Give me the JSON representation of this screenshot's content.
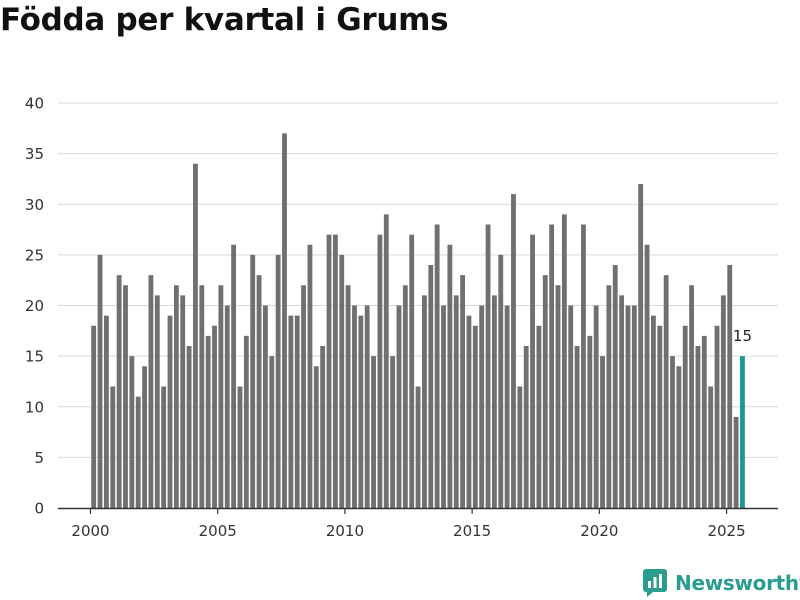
{
  "chart_data": {
    "type": "bar",
    "title": "Födda per kvartal i Grums",
    "xlabel": "",
    "ylabel": "",
    "ylim": [
      0,
      40
    ],
    "yticks": [
      0,
      5,
      10,
      15,
      20,
      25,
      30,
      35,
      40
    ],
    "xticks": [
      2000,
      2005,
      2010,
      2015,
      2020,
      2025
    ],
    "x_start_year": 2000,
    "x_start_quarter": 1,
    "categories": [
      "2000Q1",
      "2000Q2",
      "2000Q3",
      "2000Q4",
      "2001Q1",
      "2001Q2",
      "2001Q3",
      "2001Q4",
      "2002Q1",
      "2002Q2",
      "2002Q3",
      "2002Q4",
      "2003Q1",
      "2003Q2",
      "2003Q3",
      "2003Q4",
      "2004Q1",
      "2004Q2",
      "2004Q3",
      "2004Q4",
      "2005Q1",
      "2005Q2",
      "2005Q3",
      "2005Q4",
      "2006Q1",
      "2006Q2",
      "2006Q3",
      "2006Q4",
      "2007Q1",
      "2007Q2",
      "2007Q3",
      "2007Q4",
      "2008Q1",
      "2008Q2",
      "2008Q3",
      "2008Q4",
      "2009Q1",
      "2009Q2",
      "2009Q3",
      "2009Q4",
      "2010Q1",
      "2010Q2",
      "2010Q3",
      "2010Q4",
      "2011Q1",
      "2011Q2",
      "2011Q3",
      "2011Q4",
      "2012Q1",
      "2012Q2",
      "2012Q3",
      "2012Q4",
      "2013Q1",
      "2013Q2",
      "2013Q3",
      "2013Q4",
      "2014Q1",
      "2014Q2",
      "2014Q3",
      "2014Q4",
      "2015Q1",
      "2015Q2",
      "2015Q3",
      "2015Q4",
      "2016Q1",
      "2016Q2",
      "2016Q3",
      "2016Q4",
      "2017Q1",
      "2017Q2",
      "2017Q3",
      "2017Q4",
      "2018Q1",
      "2018Q2",
      "2018Q3",
      "2018Q4",
      "2019Q1",
      "2019Q2",
      "2019Q3",
      "2019Q4",
      "2020Q1",
      "2020Q2",
      "2020Q3",
      "2020Q4",
      "2021Q1",
      "2021Q2",
      "2021Q3",
      "2021Q4",
      "2022Q1",
      "2022Q2",
      "2022Q3",
      "2022Q4",
      "2023Q1",
      "2023Q2",
      "2023Q3",
      "2023Q4",
      "2024Q1",
      "2024Q2",
      "2024Q3",
      "2024Q4",
      "2025Q1",
      "2025Q2",
      "2025Q3"
    ],
    "values": [
      18,
      25,
      19,
      12,
      23,
      22,
      15,
      11,
      14,
      23,
      21,
      12,
      19,
      22,
      21,
      16,
      34,
      22,
      17,
      18,
      22,
      20,
      26,
      12,
      17,
      25,
      23,
      20,
      15,
      25,
      37,
      19,
      19,
      22,
      26,
      14,
      16,
      27,
      27,
      25,
      22,
      20,
      19,
      20,
      15,
      27,
      29,
      15,
      20,
      22,
      27,
      12,
      21,
      24,
      28,
      20,
      26,
      21,
      23,
      19,
      18,
      20,
      28,
      21,
      25,
      20,
      31,
      12,
      16,
      27,
      18,
      23,
      28,
      22,
      29,
      20,
      16,
      28,
      17,
      20,
      15,
      22,
      24,
      21,
      20,
      20,
      32,
      26,
      19,
      18,
      23,
      15,
      14,
      18,
      22,
      16,
      17,
      12,
      18,
      21,
      24,
      9,
      15
    ],
    "highlight_index": 102,
    "highlight_label": "15",
    "colors": {
      "bar": "#707070",
      "highlight": "#1a9a93",
      "grid": "#d9d9d9",
      "axis": "#333333",
      "tick_text": "#333333"
    }
  },
  "branding": {
    "name": "Newsworthy",
    "color": "#2a9d8f"
  }
}
